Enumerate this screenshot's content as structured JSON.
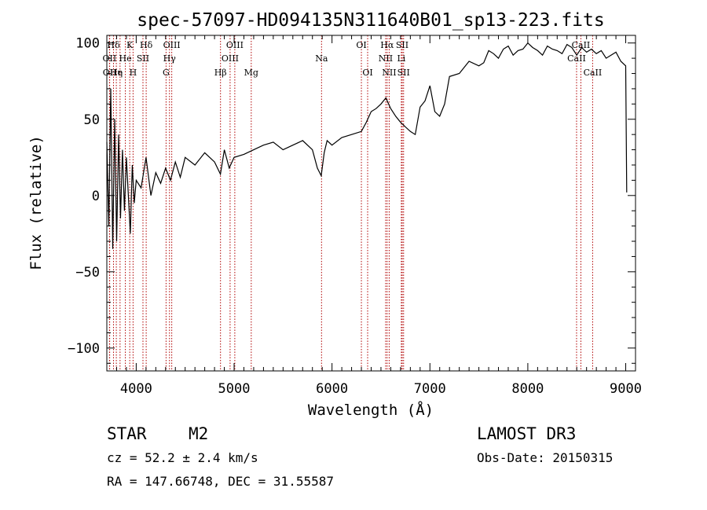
{
  "chart_data": {
    "type": "line",
    "title": "spec-57097-HD094135N311640B01_sp13-223.fits",
    "xlabel": "Wavelength (Å)",
    "ylabel": "Flux (relative)",
    "xlim": [
      3700,
      9100
    ],
    "ylim": [
      -115,
      105
    ],
    "xticks": [
      4000,
      5000,
      6000,
      7000,
      8000,
      9000
    ],
    "yticks": [
      -100,
      -50,
      0,
      50,
      100
    ],
    "xtick_labels": [
      "4000",
      "5000",
      "6000",
      "7000",
      "8000",
      "9000"
    ],
    "ytick_labels": [
      "−100",
      "−50",
      "0",
      "50",
      "100"
    ],
    "series": [
      {
        "name": "flux",
        "x": [
          3700,
          3720,
          3740,
          3760,
          3780,
          3800,
          3820,
          3840,
          3860,
          3880,
          3900,
          3920,
          3940,
          3960,
          3980,
          4000,
          4050,
          4100,
          4150,
          4200,
          4250,
          4300,
          4350,
          4400,
          4450,
          4500,
          4600,
          4700,
          4800,
          4860,
          4900,
          4950,
          5000,
          5100,
          5200,
          5300,
          5400,
          5500,
          5600,
          5700,
          5800,
          5850,
          5890,
          5920,
          5950,
          6000,
          6100,
          6200,
          6300,
          6350,
          6400,
          6450,
          6500,
          6550,
          6600,
          6650,
          6700,
          6750,
          6800,
          6850,
          6900,
          6950,
          7000,
          7050,
          7100,
          7150,
          7200,
          7300,
          7400,
          7500,
          7550,
          7600,
          7650,
          7700,
          7750,
          7800,
          7850,
          7900,
          7950,
          8000,
          8050,
          8100,
          8150,
          8200,
          8250,
          8300,
          8350,
          8400,
          8450,
          8500,
          8550,
          8600,
          8650,
          8700,
          8750,
          8800,
          8850,
          8900,
          8950,
          9000,
          9005,
          9010
        ],
        "y": [
          35,
          -20,
          70,
          -35,
          50,
          -30,
          40,
          -15,
          30,
          -10,
          25,
          0,
          -25,
          20,
          -5,
          10,
          5,
          25,
          0,
          15,
          8,
          18,
          10,
          22,
          12,
          25,
          20,
          28,
          22,
          14,
          30,
          18,
          25,
          27,
          30,
          33,
          35,
          30,
          33,
          36,
          30,
          18,
          13,
          28,
          36,
          33,
          38,
          40,
          42,
          48,
          55,
          57,
          60,
          64,
          57,
          52,
          48,
          45,
          42,
          40,
          58,
          62,
          72,
          55,
          52,
          60,
          78,
          80,
          88,
          85,
          87,
          95,
          93,
          90,
          96,
          98,
          92,
          95,
          96,
          100,
          97,
          95,
          92,
          98,
          96,
          95,
          93,
          99,
          97,
          92,
          97,
          94,
          96,
          93,
          95,
          90,
          92,
          94,
          88,
          85,
          40,
          2
        ]
      }
    ],
    "lines": [
      {
        "name": "Hδ",
        "w": 3768,
        "row": 0
      },
      {
        "name": "OII",
        "w": 3727,
        "row": 1
      },
      {
        "name": "OII",
        "w": 3729,
        "row": 2
      },
      {
        "name": "He",
        "w": 3797,
        "row": 2
      },
      {
        "name": "η",
        "w": 3835,
        "row": 2
      },
      {
        "name": "He",
        "w": 3889,
        "row": 1
      },
      {
        "name": "K",
        "w": 3934,
        "row": 0
      },
      {
        "name": "H",
        "w": 3968,
        "row": 2
      },
      {
        "name": "SII",
        "w": 4069,
        "row": 1
      },
      {
        "name": "Hδ",
        "w": 4102,
        "row": 0
      },
      {
        "name": "OIII",
        "w": 4363,
        "row": 0
      },
      {
        "name": "Hγ",
        "w": 4340,
        "row": 1
      },
      {
        "name": "G",
        "w": 4305,
        "row": 2
      },
      {
        "name": "Hβ",
        "w": 4861,
        "row": 2
      },
      {
        "name": "OIII",
        "w": 4959,
        "row": 1
      },
      {
        "name": "OIII",
        "w": 5007,
        "row": 0
      },
      {
        "name": "Mg",
        "w": 5175,
        "row": 2
      },
      {
        "name": "Na",
        "w": 5893,
        "row": 1
      },
      {
        "name": "OI",
        "w": 6300,
        "row": 0
      },
      {
        "name": "OI",
        "w": 6364,
        "row": 2
      },
      {
        "name": "Hα",
        "w": 6563,
        "row": 0
      },
      {
        "name": "NII",
        "w": 6548,
        "row": 1
      },
      {
        "name": "NII",
        "w": 6584,
        "row": 2
      },
      {
        "name": "SII",
        "w": 6717,
        "row": 0
      },
      {
        "name": "Li",
        "w": 6708,
        "row": 1
      },
      {
        "name": "SII",
        "w": 6731,
        "row": 2
      },
      {
        "name": "CaII",
        "w": 8542,
        "row": 0
      },
      {
        "name": "CaII",
        "w": 8498,
        "row": 1
      },
      {
        "name": "CaII",
        "w": 8662,
        "row": 2
      }
    ]
  },
  "info": {
    "class": "STAR",
    "subclass": "M2",
    "cz": "cz = 52.2 ± 2.4 km/s",
    "radec": "RA = 147.66748, DEC =  31.55587",
    "survey": "LAMOST DR3",
    "obsdate": "Obs-Date: 20150315"
  }
}
